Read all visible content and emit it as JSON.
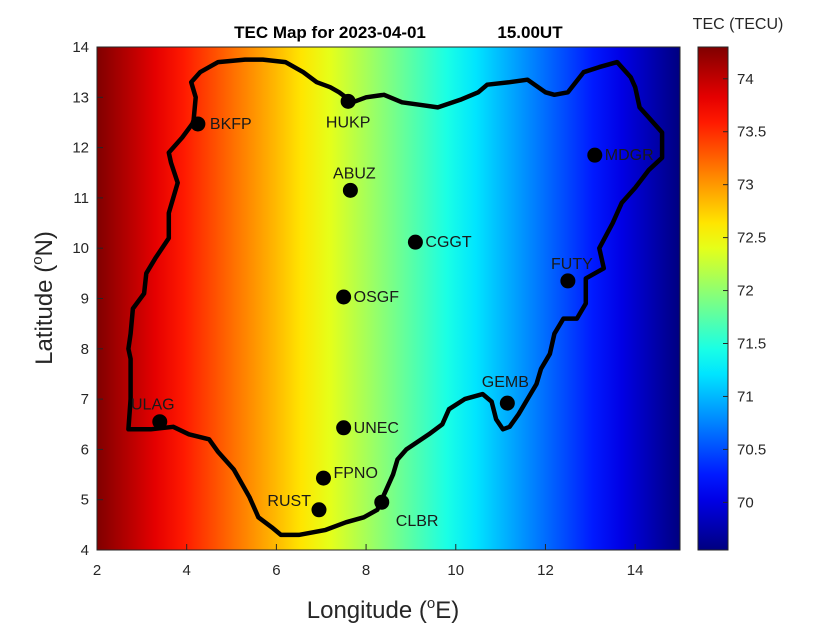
{
  "chart_data": {
    "type": "heatmap",
    "title": "TEC Map for 2023-04-01",
    "time_label": "15.00UT",
    "xlabel": "Longitude",
    "xlabel_unit_base": "o",
    "xlabel_unit_suffix": "E)",
    "ylabel": "Latitude",
    "ylabel_unit_base": "o",
    "ylabel_unit_suffix": "N)",
    "xlim": [
      2,
      15
    ],
    "ylim": [
      4,
      14
    ],
    "x_ticks": [
      2,
      4,
      6,
      8,
      10,
      12,
      14
    ],
    "y_ticks": [
      4,
      5,
      6,
      7,
      8,
      9,
      10,
      11,
      12,
      13,
      14
    ],
    "colorbar": {
      "label": "TEC (TECU)",
      "range": [
        69.55,
        74.3
      ],
      "ticks": [
        70,
        70.5,
        71,
        71.5,
        72,
        72.5,
        73,
        73.5,
        74
      ],
      "colormap": "jet"
    },
    "field": {
      "description_axis": "longitude",
      "tec_at_lon_2": 74.3,
      "tec_at_lon_15": 69.55
    },
    "stations": [
      {
        "name": "BKFP",
        "lon": 4.25,
        "lat": 12.47
      },
      {
        "name": "HUKP",
        "lon": 7.6,
        "lat": 12.92
      },
      {
        "name": "ABUZ",
        "lon": 7.65,
        "lat": 11.15
      },
      {
        "name": "MDGR",
        "lon": 13.1,
        "lat": 11.85
      },
      {
        "name": "CGGT",
        "lon": 9.1,
        "lat": 10.12
      },
      {
        "name": "FUTY",
        "lon": 12.5,
        "lat": 9.35
      },
      {
        "name": "OSGF",
        "lon": 7.5,
        "lat": 9.03
      },
      {
        "name": "GEMB",
        "lon": 11.15,
        "lat": 6.92
      },
      {
        "name": "ULAG",
        "lon": 3.4,
        "lat": 6.55
      },
      {
        "name": "UNEC",
        "lon": 7.5,
        "lat": 6.43
      },
      {
        "name": "FPNO",
        "lon": 7.05,
        "lat": 5.43
      },
      {
        "name": "CLBR",
        "lon": 8.35,
        "lat": 4.95
      },
      {
        "name": "RUST",
        "lon": 6.95,
        "lat": 4.8
      }
    ],
    "boundary": [
      [
        2.7,
        6.4
      ],
      [
        2.75,
        7.0
      ],
      [
        2.75,
        7.8
      ],
      [
        2.7,
        8.0
      ],
      [
        2.75,
        8.3
      ],
      [
        2.8,
        8.8
      ],
      [
        3.05,
        9.1
      ],
      [
        3.1,
        9.5
      ],
      [
        3.3,
        9.8
      ],
      [
        3.6,
        10.2
      ],
      [
        3.6,
        10.7
      ],
      [
        3.8,
        11.3
      ],
      [
        3.65,
        11.7
      ],
      [
        3.6,
        11.9
      ],
      [
        3.9,
        12.2
      ],
      [
        4.15,
        12.5
      ],
      [
        4.2,
        13.0
      ],
      [
        4.1,
        13.3
      ],
      [
        4.3,
        13.5
      ],
      [
        4.7,
        13.7
      ],
      [
        5.3,
        13.75
      ],
      [
        5.7,
        13.75
      ],
      [
        6.2,
        13.7
      ],
      [
        6.6,
        13.5
      ],
      [
        6.9,
        13.3
      ],
      [
        7.2,
        13.2
      ],
      [
        7.4,
        13.1
      ],
      [
        7.7,
        12.9
      ],
      [
        8.0,
        13.0
      ],
      [
        8.4,
        13.05
      ],
      [
        8.8,
        12.9
      ],
      [
        9.2,
        12.85
      ],
      [
        9.6,
        12.8
      ],
      [
        10.1,
        12.95
      ],
      [
        10.5,
        13.1
      ],
      [
        10.7,
        13.25
      ],
      [
        11.2,
        13.3
      ],
      [
        11.6,
        13.35
      ],
      [
        12.0,
        13.1
      ],
      [
        12.2,
        13.05
      ],
      [
        12.5,
        13.1
      ],
      [
        12.85,
        13.5
      ],
      [
        13.2,
        13.6
      ],
      [
        13.6,
        13.7
      ],
      [
        13.9,
        13.4
      ],
      [
        14.0,
        13.2
      ],
      [
        14.1,
        12.8
      ],
      [
        14.3,
        12.6
      ],
      [
        14.6,
        12.3
      ],
      [
        14.6,
        11.8
      ],
      [
        14.3,
        11.55
      ],
      [
        14.0,
        11.2
      ],
      [
        13.7,
        10.9
      ],
      [
        13.5,
        10.5
      ],
      [
        13.2,
        10.0
      ],
      [
        13.3,
        9.6
      ],
      [
        12.9,
        9.4
      ],
      [
        12.9,
        8.9
      ],
      [
        12.7,
        8.6
      ],
      [
        12.4,
        8.6
      ],
      [
        12.2,
        8.3
      ],
      [
        12.1,
        7.9
      ],
      [
        11.9,
        7.6
      ],
      [
        11.8,
        7.3
      ],
      [
        11.6,
        7.0
      ],
      [
        11.4,
        6.7
      ],
      [
        11.2,
        6.45
      ],
      [
        11.05,
        6.4
      ],
      [
        10.9,
        6.6
      ],
      [
        10.8,
        6.95
      ],
      [
        10.6,
        7.1
      ],
      [
        10.2,
        7.0
      ],
      [
        9.85,
        6.8
      ],
      [
        9.7,
        6.5
      ],
      [
        9.4,
        6.3
      ],
      [
        8.9,
        6.0
      ],
      [
        8.7,
        5.8
      ],
      [
        8.6,
        5.5
      ],
      [
        8.4,
        5.1
      ],
      [
        8.25,
        4.8
      ],
      [
        7.95,
        4.65
      ],
      [
        7.55,
        4.55
      ],
      [
        7.1,
        4.4
      ],
      [
        6.8,
        4.35
      ],
      [
        6.5,
        4.3
      ],
      [
        6.1,
        4.3
      ],
      [
        5.9,
        4.45
      ],
      [
        5.6,
        4.65
      ],
      [
        5.4,
        5.05
      ],
      [
        5.05,
        5.6
      ],
      [
        4.7,
        5.95
      ],
      [
        4.5,
        6.2
      ],
      [
        4.05,
        6.3
      ],
      [
        3.7,
        6.45
      ],
      [
        3.2,
        6.4
      ],
      [
        2.7,
        6.4
      ]
    ]
  }
}
